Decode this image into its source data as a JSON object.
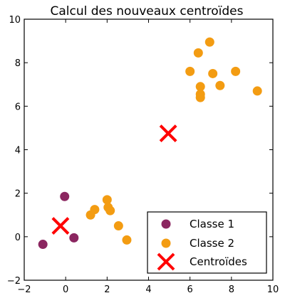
{
  "chart_data": {
    "type": "scatter",
    "title": "Calcul des nouveaux centroïdes",
    "xlabel": "",
    "ylabel": "",
    "xlim": [
      -2,
      10
    ],
    "ylim": [
      -2,
      10
    ],
    "xticks": [
      -2,
      0,
      2,
      4,
      6,
      8,
      10
    ],
    "yticks": [
      -2,
      0,
      2,
      4,
      6,
      8,
      10
    ],
    "grid": false,
    "legend_position": "bottom-right",
    "series": [
      {
        "name": "Classe 1",
        "color": "#8B2660",
        "marker": "circle",
        "points": [
          [
            -0.05,
            1.85
          ],
          [
            -1.1,
            -0.35
          ],
          [
            0.4,
            -0.05
          ]
        ]
      },
      {
        "name": "Classe 2",
        "color": "#F39C12",
        "marker": "circle",
        "points": [
          [
            1.2,
            1.0
          ],
          [
            1.4,
            1.25
          ],
          [
            2.0,
            1.7
          ],
          [
            2.05,
            1.35
          ],
          [
            2.15,
            1.2
          ],
          [
            2.55,
            0.5
          ],
          [
            2.95,
            -0.15
          ],
          [
            6.0,
            7.6
          ],
          [
            6.4,
            8.45
          ],
          [
            6.5,
            6.9
          ],
          [
            6.5,
            6.55
          ],
          [
            6.5,
            6.4
          ],
          [
            6.95,
            8.95
          ],
          [
            7.1,
            7.5
          ],
          [
            7.45,
            6.95
          ],
          [
            8.2,
            7.6
          ],
          [
            9.25,
            6.7
          ]
        ]
      },
      {
        "name": "Centroïdes",
        "color": "#FF0000",
        "marker": "x",
        "points": [
          [
            -0.25,
            0.5
          ],
          [
            4.95,
            4.75
          ]
        ]
      }
    ]
  }
}
